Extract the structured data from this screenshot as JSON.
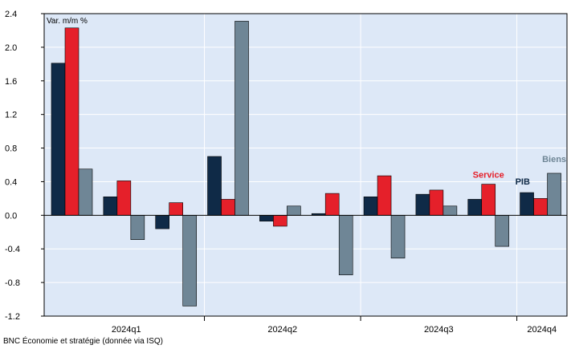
{
  "source_note": "BNC Économie et stratégie (donnée via ISQ)",
  "chart_data": {
    "type": "bar",
    "ylabel": "Var. m/m %",
    "ylim": [
      -1.2,
      2.4
    ],
    "yticks": [
      2.4,
      2.0,
      1.6,
      1.2,
      0.8,
      0.4,
      0.0,
      -0.4,
      -0.8,
      -1.2
    ],
    "ytick_labels": [
      "2.4",
      "2.0",
      "1.6",
      "1.2",
      "0.8",
      "0.4",
      "0.0",
      "-0.4",
      "-0.8",
      "-1.2"
    ],
    "grid": true,
    "months": 10,
    "quarters": [
      {
        "label": "2024q1",
        "months": 3
      },
      {
        "label": "2024q2",
        "months": 3
      },
      {
        "label": "2024q3",
        "months": 3
      },
      {
        "label": "2024q4",
        "months": 1
      }
    ],
    "series": [
      {
        "name": "PIB",
        "color": "#0f2a47",
        "values": [
          1.81,
          0.22,
          -0.16,
          0.7,
          -0.07,
          0.02,
          0.22,
          0.25,
          0.19,
          0.27
        ]
      },
      {
        "name": "Service",
        "color": "#e5202a",
        "values": [
          2.23,
          0.41,
          0.15,
          0.19,
          -0.13,
          0.26,
          0.47,
          0.3,
          0.37,
          0.2
        ]
      },
      {
        "name": "Biens",
        "color": "#6f8696",
        "values": [
          0.55,
          -0.29,
          -1.08,
          2.31,
          0.11,
          -0.71,
          -0.51,
          0.11,
          -0.37,
          0.5
        ]
      }
    ]
  }
}
